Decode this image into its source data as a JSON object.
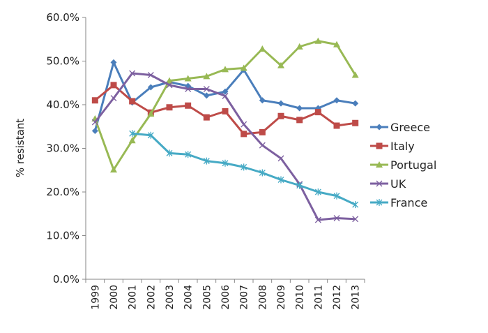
{
  "chart_data": {
    "type": "line",
    "title": "",
    "xlabel": "",
    "ylabel": "% resistant",
    "ylim": [
      0,
      60
    ],
    "yticks": [
      "0.0%",
      "10.0%",
      "20.0%",
      "30.0%",
      "40.0%",
      "50.0%",
      "60.0%"
    ],
    "categories": [
      "1999",
      "2000",
      "2001",
      "2002",
      "2003",
      "2004",
      "2005",
      "2006",
      "2007",
      "2008",
      "2009",
      "2010",
      "2011",
      "2012",
      "2013"
    ],
    "grid": false,
    "legend": "right",
    "series": [
      {
        "name": "Greece",
        "color": "#4a7ebb",
        "marker": "diamond",
        "values": [
          34,
          49.7,
          40.5,
          44,
          45.2,
          44.3,
          42.1,
          43,
          48,
          41,
          40.3,
          39.2,
          39.2,
          41,
          40.3
        ]
      },
      {
        "name": "Italy",
        "color": "#be4b48",
        "marker": "square",
        "values": [
          41,
          44.5,
          40.8,
          38.2,
          39.4,
          39.8,
          37.1,
          38.5,
          33.3,
          33.7,
          37.4,
          36.5,
          38.3,
          35.2,
          35.8
        ]
      },
      {
        "name": "Portugal",
        "color": "#98b954",
        "marker": "triangle",
        "values": [
          36.8,
          25.1,
          31.8,
          37.9,
          45.5,
          46,
          46.5,
          48.1,
          48.4,
          52.8,
          49,
          53.3,
          54.6,
          53.8,
          46.8
        ]
      },
      {
        "name": "UK",
        "color": "#7d60a0",
        "marker": "x",
        "values": [
          36,
          41.5,
          47.2,
          46.8,
          44.5,
          43.6,
          43.6,
          42,
          35.5,
          30.7,
          27.7,
          21.8,
          13.6,
          14,
          13.8
        ]
      },
      {
        "name": "France",
        "color": "#46aac5",
        "marker": "star",
        "values": [
          null,
          null,
          33.4,
          33,
          28.9,
          28.6,
          27.1,
          26.6,
          25.7,
          24.4,
          22.8,
          21.5,
          20,
          19.1,
          17.1
        ]
      }
    ]
  }
}
